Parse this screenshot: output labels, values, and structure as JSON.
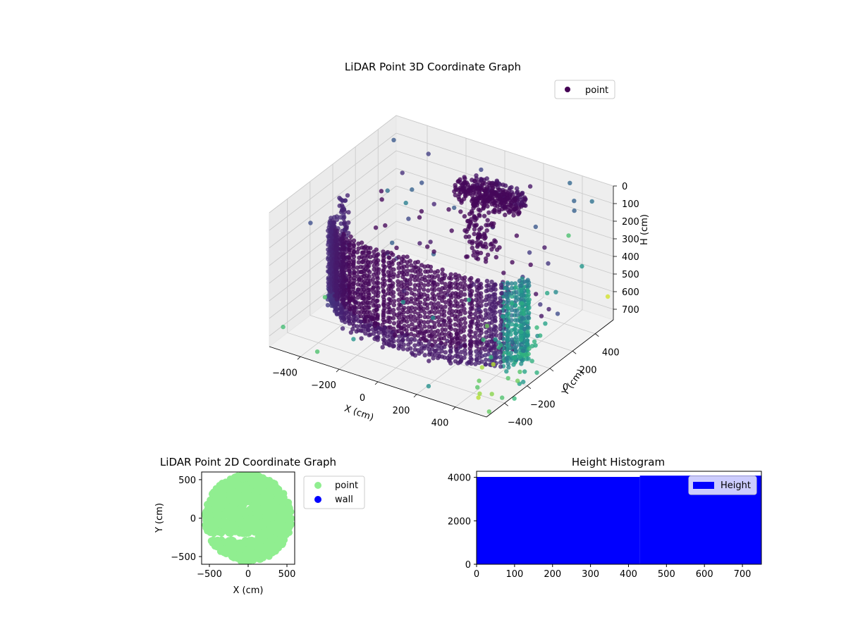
{
  "chart_data": [
    {
      "type": "scatter",
      "projection": "3d",
      "title": "LiDAR Point 3D Coordinate Graph",
      "xlabel": "X (cm)",
      "ylabel": "Y (cm)",
      "zlabel": "H (cm)",
      "xlim": [
        -560,
        560
      ],
      "ylim": [
        -560,
        560
      ],
      "zlim": [
        760,
        0
      ],
      "xticks": [
        -400,
        -200,
        0,
        200,
        400
      ],
      "yticks": [
        -400,
        -200,
        0,
        200,
        400
      ],
      "zticks": [
        0,
        100,
        200,
        300,
        400,
        500,
        600,
        700
      ],
      "colormap": "viridis",
      "grid": true,
      "legend": {
        "position": "top-right",
        "entries": [
          {
            "name": "point",
            "color": "#440154"
          }
        ]
      },
      "series": [
        {
          "name": "point",
          "description": "dense arc of wall points around the sensor at heights 150-700 cm, plus a ceiling cluster near x=0, y=350, h=150",
          "sample_points": [
            {
              "x": -500,
              "y": -100,
              "h": 300
            },
            {
              "x": -300,
              "y": -250,
              "h": 450
            },
            {
              "x": 0,
              "y": -320,
              "h": 500
            },
            {
              "x": 300,
              "y": -250,
              "h": 450
            },
            {
              "x": 480,
              "y": -50,
              "h": 420
            },
            {
              "x": 0,
              "y": 350,
              "h": 150
            },
            {
              "x": 250,
              "y": 500,
              "h": 100
            },
            {
              "x": -200,
              "y": 500,
              "h": 80
            },
            {
              "x": 450,
              "y": -450,
              "h": 700
            }
          ]
        }
      ]
    },
    {
      "type": "scatter",
      "title": "LiDAR Point 2D Coordinate Graph",
      "xlabel": "X (cm)",
      "ylabel": "Y (cm)",
      "xlim": [
        -600,
        600
      ],
      "ylim": [
        -600,
        600
      ],
      "xticks": [
        -500,
        0,
        500
      ],
      "yticks": [
        -500,
        0,
        500
      ],
      "legend": {
        "position": "outside-right",
        "entries": [
          {
            "name": "point",
            "color": "#90ee90"
          },
          {
            "name": "wall",
            "color": "#0000ff"
          }
        ]
      }
    },
    {
      "type": "bar",
      "title": "Height Histogram",
      "xlim": [
        0,
        750
      ],
      "ylim": [
        0,
        4280
      ],
      "xticks": [
        0,
        100,
        200,
        300,
        400,
        500,
        600,
        700
      ],
      "yticks": [
        0,
        2000,
        4000
      ],
      "bins": [
        {
          "from": 0,
          "to": 430,
          "count": 4020
        },
        {
          "from": 430,
          "to": 750,
          "count": 4080
        }
      ],
      "color": "#0000ff",
      "legend": {
        "position": "top-right",
        "entries": [
          {
            "name": "Height",
            "color": "#0000ff"
          }
        ]
      }
    }
  ]
}
